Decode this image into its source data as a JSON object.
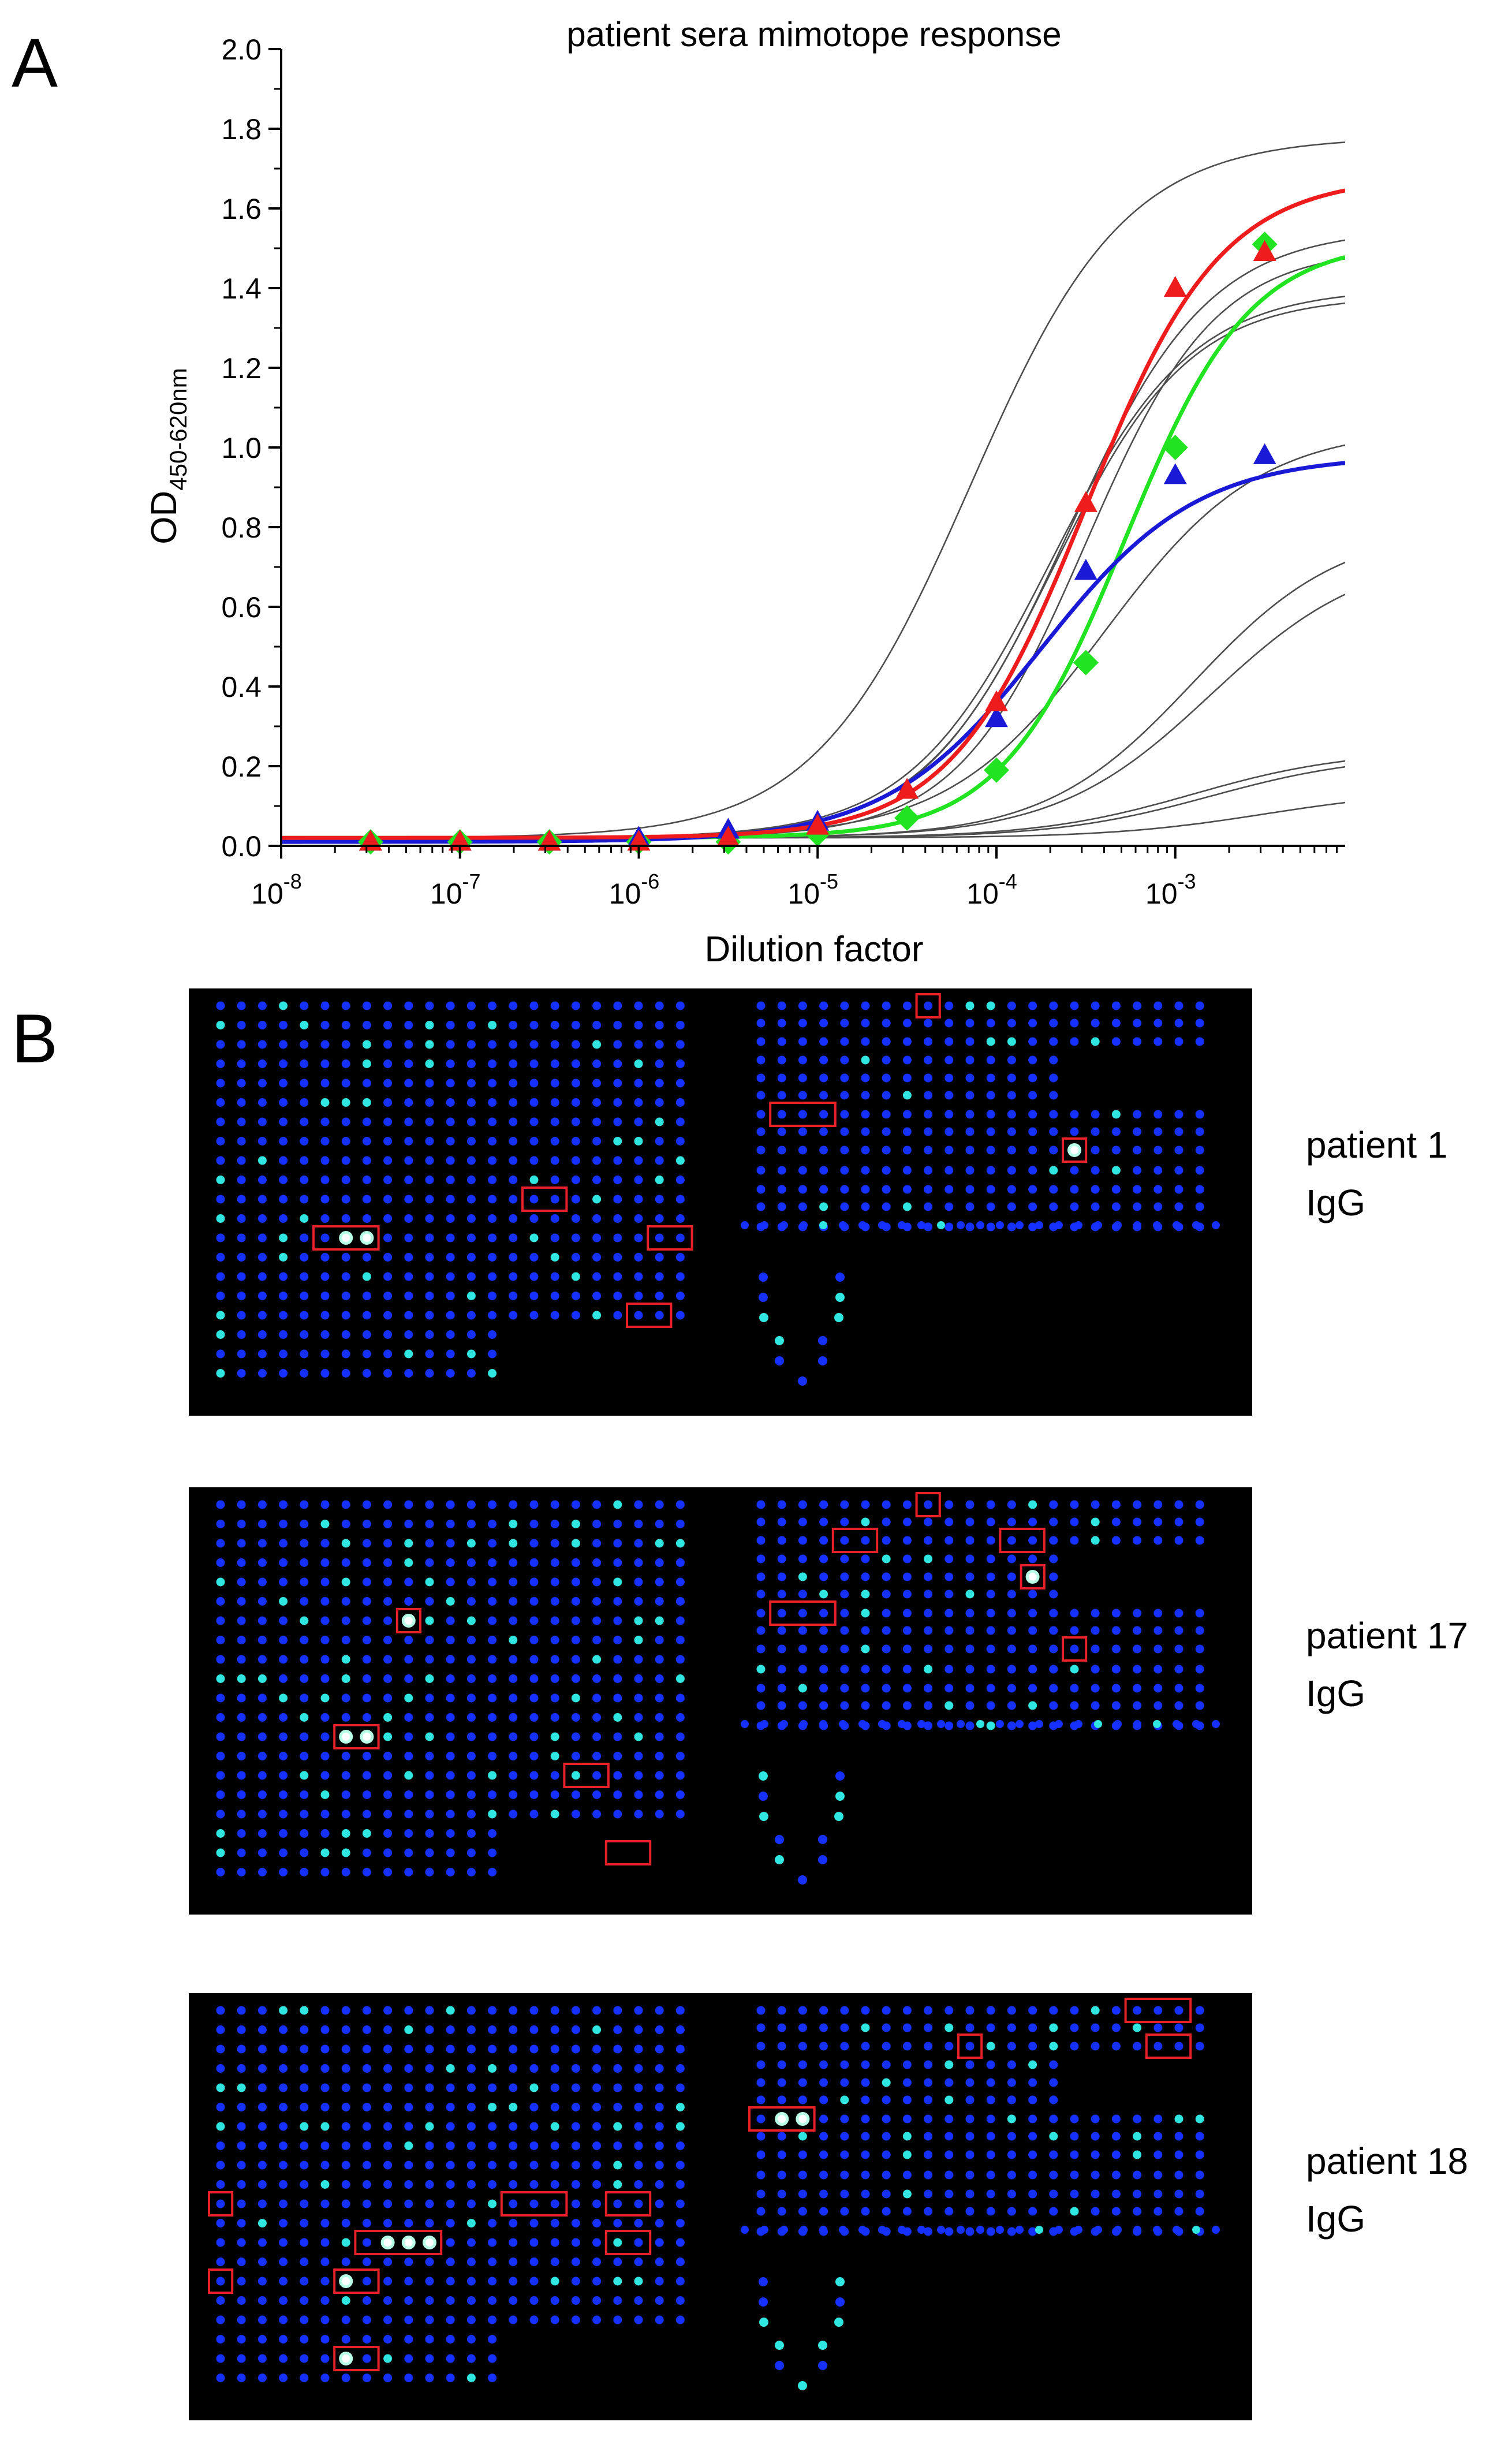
{
  "panels": {
    "a_letter": "A",
    "b_letter": "B"
  },
  "colors": {
    "red": "#ee1c1c",
    "blue": "#1a1ad6",
    "green": "#22e322",
    "gray": "#4d4d4d",
    "spot_blue": "#1530ff",
    "spot_cyan": "#30e6e0",
    "highlight": "#e8202a"
  },
  "chart_data": {
    "type": "line",
    "title": "patient sera mimotope response",
    "xlabel": "Dilution factor",
    "ylabel_main": "OD",
    "ylabel_sub": "450-620nm",
    "x_scale": "log10",
    "xlim_log10": [
      -8,
      -2.05
    ],
    "ylim": [
      0,
      2.0
    ],
    "x_ticks": [
      {
        "base": "10",
        "exp": "-8",
        "log": -8
      },
      {
        "base": "10",
        "exp": "-7",
        "log": -7
      },
      {
        "base": "10",
        "exp": "-6",
        "log": -6
      },
      {
        "base": "10",
        "exp": "-5",
        "log": -5
      },
      {
        "base": "10",
        "exp": "-4",
        "log": -4
      },
      {
        "base": "10",
        "exp": "-3",
        "log": -3
      }
    ],
    "y_ticks": [
      "0.0",
      "0.2",
      "0.4",
      "0.6",
      "0.8",
      "1.0",
      "1.2",
      "1.4",
      "1.6",
      "1.8",
      "2.0"
    ],
    "gray_curves": [
      {
        "bottom": 0.02,
        "top": 1.78,
        "logEC50": -4.15,
        "hill": 1.0
      },
      {
        "bottom": 0.02,
        "top": 1.55,
        "logEC50": -3.6,
        "hill": 1.1
      },
      {
        "bottom": 0.02,
        "top": 1.5,
        "logEC50": -3.5,
        "hill": 1.2
      },
      {
        "bottom": 0.02,
        "top": 1.4,
        "logEC50": -3.7,
        "hill": 1.1
      },
      {
        "bottom": 0.02,
        "top": 1.38,
        "logEC50": -3.68,
        "hill": 1.15
      },
      {
        "bottom": 0.02,
        "top": 1.05,
        "logEC50": -3.4,
        "hill": 1.0
      },
      {
        "bottom": 0.02,
        "top": 0.8,
        "logEC50": -2.9,
        "hill": 1.05
      },
      {
        "bottom": 0.02,
        "top": 0.74,
        "logEC50": -2.8,
        "hill": 1.0
      },
      {
        "bottom": 0.02,
        "top": 0.24,
        "logEC50": -2.9,
        "hill": 1.0
      },
      {
        "bottom": 0.02,
        "top": 0.23,
        "logEC50": -2.8,
        "hill": 1.0
      },
      {
        "bottom": 0.02,
        "top": 0.14,
        "logEC50": -2.5,
        "hill": 1.0
      }
    ],
    "series": [
      {
        "name": "red",
        "marker": "triangle",
        "fit": {
          "bottom": 0.02,
          "top": 1.68,
          "logEC50": -3.5,
          "hill": 1.15
        },
        "x_log": [
          -7.5,
          -7.0,
          -6.5,
          -6.0,
          -5.5,
          -5.0,
          -4.5,
          -4.0,
          -3.5,
          -3.0,
          -2.5
        ],
        "values": [
          0.01,
          0.01,
          0.01,
          0.01,
          0.02,
          0.05,
          0.14,
          0.36,
          0.86,
          1.4,
          1.49
        ]
      },
      {
        "name": "blue",
        "marker": "triangle",
        "fit": {
          "bottom": 0.01,
          "top": 0.98,
          "logEC50": -3.75,
          "hill": 1.0
        },
        "x_log": [
          -7.5,
          -7.0,
          -6.5,
          -6.0,
          -5.5,
          -5.0,
          -4.5,
          -4.0,
          -3.5,
          -3.0,
          -2.5
        ],
        "values": [
          0.01,
          0.01,
          0.01,
          0.02,
          0.04,
          0.06,
          0.14,
          0.32,
          0.69,
          0.93,
          0.98
        ]
      },
      {
        "name": "green",
        "marker": "diamond",
        "fit": {
          "bottom": 0.02,
          "top": 1.52,
          "logEC50": -3.28,
          "hill": 1.25
        },
        "x_log": [
          -7.5,
          -7.0,
          -6.5,
          -6.0,
          -5.5,
          -5.0,
          -4.5,
          -4.0,
          -3.5,
          -3.0,
          -2.5
        ],
        "values": [
          0.01,
          0.01,
          0.01,
          0.01,
          0.01,
          0.03,
          0.07,
          0.19,
          0.46,
          1.0,
          1.51
        ]
      }
    ]
  },
  "arrays": [
    {
      "label_line1": "patient 1",
      "label_line2": "IgG",
      "seed": 11,
      "highlights": [
        {
          "side": "L",
          "row": 5,
          "col": 5,
          "w": 3
        },
        {
          "side": "L",
          "row": 4,
          "col": 15,
          "w": 2
        },
        {
          "side": "L",
          "row": 5,
          "col": 21,
          "w": 2
        },
        {
          "side": "L",
          "row": 7,
          "col": 20,
          "w": 2
        },
        {
          "side": "R",
          "row": 0,
          "col": 8,
          "w": 1
        },
        {
          "side": "R",
          "row": 3,
          "col": 1,
          "w": 3
        },
        {
          "side": "R",
          "row": 4,
          "col": 15,
          "w": 1
        }
      ],
      "bright": [
        {
          "side": "L",
          "row": 5,
          "col": 6,
          "white": 1
        },
        {
          "side": "L",
          "row": 5,
          "col": 7,
          "white": 1
        },
        {
          "side": "R",
          "row": 4,
          "col": 15,
          "white": 1
        }
      ]
    },
    {
      "label_line1": "patient 17",
      "label_line2": "IgG",
      "seed": 23,
      "highlights": [
        {
          "side": "L",
          "row": 2,
          "col": 9,
          "w": 1
        },
        {
          "side": "L",
          "row": 5,
          "col": 6,
          "w": 2
        },
        {
          "side": "L",
          "row": 6,
          "col": 17,
          "w": 2
        },
        {
          "side": "L",
          "row": 8,
          "col": 19,
          "w": 2
        },
        {
          "side": "R",
          "row": 0,
          "col": 8,
          "w": 1
        },
        {
          "side": "R",
          "row": 1,
          "col": 4,
          "w": 2
        },
        {
          "side": "R",
          "row": 1,
          "col": 12,
          "w": 2
        },
        {
          "side": "R",
          "row": 2,
          "col": 13,
          "w": 1
        },
        {
          "side": "R",
          "row": 3,
          "col": 1,
          "w": 3
        },
        {
          "side": "R",
          "row": 4,
          "col": 15,
          "w": 1
        }
      ],
      "bright": [
        {
          "side": "L",
          "row": 5,
          "col": 6,
          "white": 1
        },
        {
          "side": "L",
          "row": 5,
          "col": 7,
          "white": 1
        },
        {
          "side": "L",
          "row": 2,
          "col": 9,
          "white": 1
        },
        {
          "side": "R",
          "row": 2,
          "col": 13,
          "white": 1
        }
      ]
    },
    {
      "label_line1": "patient 18",
      "label_line2": "IgG",
      "seed": 37,
      "highlights": [
        {
          "side": "L",
          "row": 4,
          "col": 0,
          "w": 1
        },
        {
          "side": "L",
          "row": 6,
          "col": 0,
          "w": 1
        },
        {
          "side": "L",
          "row": 5,
          "col": 7,
          "w": 4
        },
        {
          "side": "L",
          "row": 6,
          "col": 6,
          "w": 2
        },
        {
          "side": "L",
          "row": 4,
          "col": 14,
          "w": 3
        },
        {
          "side": "L",
          "row": 4,
          "col": 19,
          "w": 2
        },
        {
          "side": "L",
          "row": 5,
          "col": 19,
          "w": 2
        },
        {
          "side": "L",
          "row": 8,
          "col": 6,
          "w": 2
        },
        {
          "side": "R",
          "row": 0,
          "col": 18,
          "w": 3
        },
        {
          "side": "R",
          "row": 1,
          "col": 19,
          "w": 2
        },
        {
          "side": "R",
          "row": 1,
          "col": 10,
          "w": 1
        },
        {
          "side": "R",
          "row": 3,
          "col": 0,
          "w": 3
        }
      ],
      "bright": [
        {
          "side": "L",
          "row": 5,
          "col": 8,
          "white": 1
        },
        {
          "side": "L",
          "row": 5,
          "col": 9,
          "white": 1
        },
        {
          "side": "L",
          "row": 5,
          "col": 10,
          "white": 1
        },
        {
          "side": "L",
          "row": 6,
          "col": 6,
          "white": 1
        },
        {
          "side": "L",
          "row": 8,
          "col": 6,
          "white": 1
        },
        {
          "side": "R",
          "row": 3,
          "col": 1,
          "white": 1
        },
        {
          "side": "R",
          "row": 3,
          "col": 2,
          "white": 1
        }
      ]
    }
  ]
}
